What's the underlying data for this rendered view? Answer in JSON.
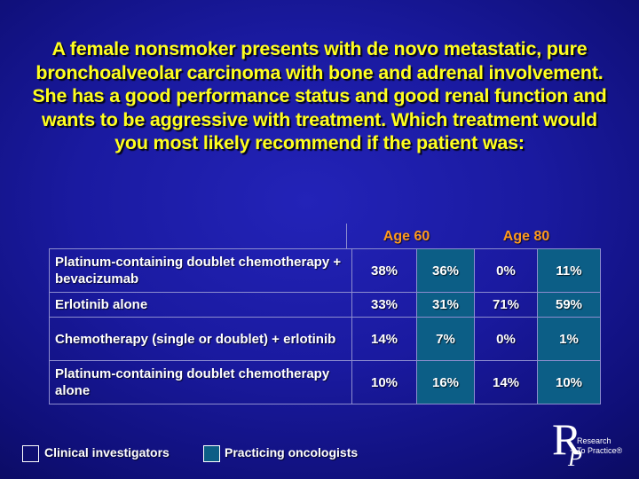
{
  "title": "A female nonsmoker presents with de novo metastatic, pure bronchoalveolar carcinoma with bone and adrenal involvement. She has a good performance status and good renal function and wants to be aggressive with treatment. Which treatment would you most likely recommend if the patient was:",
  "groups": [
    "Age 60",
    "Age 80"
  ],
  "rows": [
    {
      "option": "Platinum-containing doublet chemotherapy + bevacizumab",
      "values": [
        "38%",
        "36%",
        "0%",
        "11%"
      ]
    },
    {
      "option": "Erlotinib alone",
      "values": [
        "33%",
        "31%",
        "71%",
        "59%"
      ]
    },
    {
      "option": "Chemotherapy (single or doublet) + erlotinib",
      "values": [
        "14%",
        "7%",
        "0%",
        "1%"
      ]
    },
    {
      "option": "Platinum-containing doublet chemotherapy alone",
      "values": [
        "10%",
        "16%",
        "14%",
        "10%"
      ]
    }
  ],
  "legend": {
    "clinical": "Clinical investigators",
    "practicing": "Practicing oncologists"
  },
  "logo": {
    "letters_big": "R",
    "letters_small": "P",
    "line1": "Research",
    "line2": "To Practice®"
  },
  "colors": {
    "title": "#ffff1e",
    "group_header": "#ff9a1f",
    "practicing_fill": "#0c5e86",
    "background": "#1a1aa0"
  }
}
